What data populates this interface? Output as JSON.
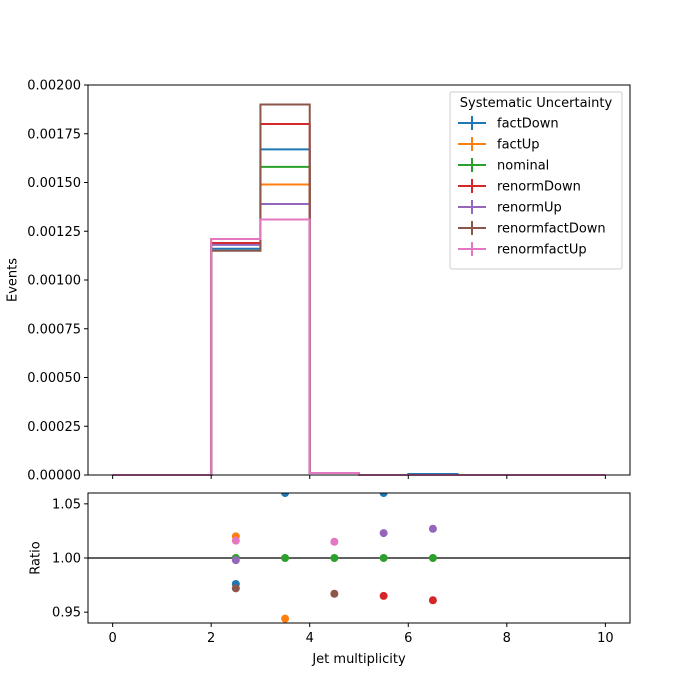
{
  "chart_data": [
    {
      "type": "line",
      "step": "histogram",
      "ylabel": "Events",
      "xlim": [
        -0.5,
        10.5
      ],
      "ylim": [
        0,
        0.002
      ],
      "yticks": [
        "0.00000",
        "0.00025",
        "0.00050",
        "0.00075",
        "0.00100",
        "0.00125",
        "0.00150",
        "0.00175",
        "0.00200"
      ],
      "legend": {
        "title": "Systematic Uncertainty",
        "placement": "top-right"
      },
      "bin_edges": [
        0,
        1,
        2,
        3,
        4,
        5,
        6,
        7,
        8,
        9,
        10
      ],
      "series": [
        {
          "name": "factDown",
          "color": "#1f77b4",
          "values": [
            0,
            0,
            0.00116,
            0.00167,
            1e-05,
            0,
            5e-06,
            0,
            0,
            0
          ]
        },
        {
          "name": "factUp",
          "color": "#ff7f0e",
          "values": [
            0,
            0,
            0.00121,
            0.00149,
            1e-05,
            0,
            0,
            0,
            0,
            0
          ]
        },
        {
          "name": "nominal",
          "color": "#2ca02c",
          "values": [
            0,
            0,
            0.00119,
            0.00158,
            1e-05,
            0,
            0,
            0,
            0,
            0
          ]
        },
        {
          "name": "renormDown",
          "color": "#d62728",
          "values": [
            0,
            0,
            0.00119,
            0.0018,
            1e-05,
            0,
            0,
            0,
            0,
            0
          ]
        },
        {
          "name": "renormUp",
          "color": "#9467bd",
          "values": [
            0,
            0,
            0.00118,
            0.00139,
            1e-05,
            0,
            0,
            0,
            0,
            0
          ]
        },
        {
          "name": "renormfactDown",
          "color": "#8c564b",
          "values": [
            0,
            0,
            0.00115,
            0.0019,
            1e-05,
            0,
            0,
            0,
            0,
            0
          ]
        },
        {
          "name": "renormfactUp",
          "color": "#e377c2",
          "values": [
            0,
            0,
            0.00121,
            0.00131,
            1e-05,
            0,
            0,
            0,
            0,
            0
          ]
        }
      ]
    },
    {
      "type": "scatter",
      "xlabel": "Jet multiplicity",
      "ylabel": "Ratio",
      "xlim": [
        -0.5,
        10.5
      ],
      "ylim": [
        0.94,
        1.06
      ],
      "xticks": [
        "0",
        "2",
        "4",
        "6",
        "8",
        "10"
      ],
      "yticks": [
        "0.95",
        "1.00",
        "1.05"
      ],
      "reference_line": 1.0,
      "series": [
        {
          "name": "factDown",
          "color": "#1f77b4",
          "points": [
            [
              2.5,
              0.976
            ],
            [
              3.5,
              1.06
            ],
            [
              5.5,
              1.06
            ]
          ]
        },
        {
          "name": "factUp",
          "color": "#ff7f0e",
          "points": [
            [
              2.5,
              1.02
            ],
            [
              3.5,
              0.944
            ]
          ]
        },
        {
          "name": "nominal",
          "color": "#2ca02c",
          "points": [
            [
              2.5,
              1.0
            ],
            [
              3.5,
              1.0
            ],
            [
              4.5,
              1.0
            ],
            [
              5.5,
              1.0
            ],
            [
              6.5,
              1.0
            ]
          ]
        },
        {
          "name": "renormDown",
          "color": "#d62728",
          "points": [
            [
              5.5,
              0.965
            ],
            [
              6.5,
              0.961
            ]
          ]
        },
        {
          "name": "renormUp",
          "color": "#9467bd",
          "points": [
            [
              2.5,
              0.998
            ],
            [
              5.5,
              1.023
            ],
            [
              6.5,
              1.027
            ]
          ]
        },
        {
          "name": "renormfactDown",
          "color": "#8c564b",
          "points": [
            [
              2.5,
              0.972
            ],
            [
              4.5,
              0.967
            ]
          ]
        },
        {
          "name": "renormfactUp",
          "color": "#e377c2",
          "points": [
            [
              2.5,
              1.016
            ],
            [
              4.5,
              1.015
            ]
          ]
        }
      ]
    }
  ]
}
